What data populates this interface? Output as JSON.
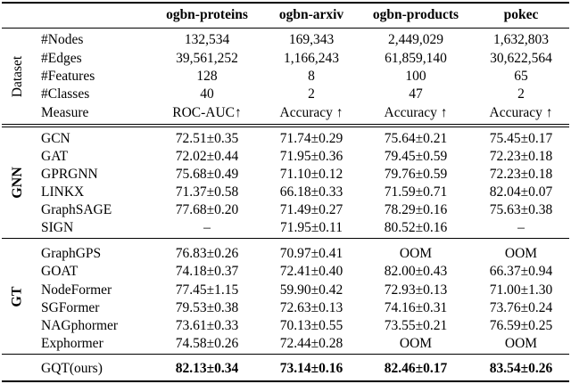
{
  "columns": [
    "",
    "ogbn-proteins",
    "ogbn-arxiv",
    "ogbn-products",
    "pokec"
  ],
  "groups": {
    "dataset": "Dataset",
    "gnn": "GNN",
    "gt": "GT"
  },
  "dataset_rows": [
    [
      "#Nodes",
      "132,534",
      "169,343",
      "2,449,029",
      "1,632,803"
    ],
    [
      "#Edges",
      "39,561,252",
      "1,166,243",
      "61,859,140",
      "30,622,564"
    ],
    [
      "#Features",
      "128",
      "8",
      "100",
      "65"
    ],
    [
      "#Classes",
      "40",
      "2",
      "47",
      "2"
    ],
    [
      "Measure",
      "ROC-AUC↑",
      "Accuracy ↑",
      "Accuracy ↑",
      "Accuracy ↑"
    ]
  ],
  "gnn_rows": [
    [
      "GCN",
      "72.51±0.35",
      "71.74±0.29",
      "75.64±0.21",
      "75.45±0.17"
    ],
    [
      "GAT",
      "72.02±0.44",
      "71.95±0.36",
      "79.45±0.59",
      "72.23±0.18"
    ],
    [
      "GPRGNN",
      "75.68±0.49",
      "71.10±0.12",
      "79.76±0.59",
      "72.23±0.18"
    ],
    [
      "LINKX",
      "71.37±0.58",
      "66.18±0.33",
      "71.59±0.71",
      "82.04±0.07"
    ],
    [
      "GraphSAGE",
      "77.68±0.20",
      "71.49±0.27",
      "78.29±0.16",
      "75.63±0.38"
    ],
    [
      "SIGN",
      "–",
      "71.95±0.11",
      "80.52±0.16",
      "–"
    ]
  ],
  "gt_rows": [
    [
      "GraphGPS",
      "76.83±0.26",
      "70.97±0.41",
      "OOM",
      "OOM"
    ],
    [
      "GOAT",
      "74.18±0.37",
      "72.41±0.40",
      "82.00±0.43",
      "66.37±0.94"
    ],
    [
      "NodeFormer",
      "77.45±1.15",
      "59.90±0.42",
      "72.93±0.13",
      "71.00±1.30"
    ],
    [
      "SGFormer",
      "79.53±0.38",
      "72.63±0.13",
      "74.16±0.31",
      "73.76±0.24"
    ],
    [
      "NAGphormer",
      "73.61±0.33",
      "70.13±0.55",
      "73.55±0.21",
      "76.59±0.25"
    ],
    [
      "Exphormer",
      "74.58±0.26",
      "72.44±0.28",
      "OOM",
      "OOM"
    ]
  ],
  "ours_row": [
    "GQT(ours)",
    "82.13±0.34",
    "73.14±0.16",
    "82.46±0.17",
    "83.54±0.26"
  ]
}
